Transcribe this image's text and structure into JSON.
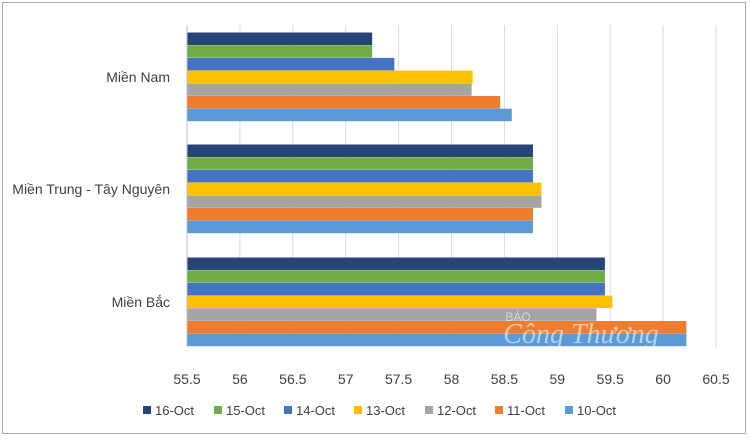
{
  "chart_data": {
    "type": "bar",
    "orientation": "horizontal",
    "categories": [
      "Miền Nam",
      "Miền Trung - Tây Nguyên",
      "Miền Bắc"
    ],
    "series": [
      {
        "name": "16-Oct",
        "color": "#264478",
        "values": [
          57.25,
          58.77,
          59.45
        ]
      },
      {
        "name": "15-Oct",
        "color": "#70ad47",
        "values": [
          57.25,
          58.77,
          59.45
        ]
      },
      {
        "name": "14-Oct",
        "color": "#4472c4",
        "values": [
          57.46,
          58.77,
          59.45
        ]
      },
      {
        "name": "13-Oct",
        "color": "#ffc000",
        "values": [
          58.2,
          58.85,
          59.52
        ]
      },
      {
        "name": "12-Oct",
        "color": "#a5a5a5",
        "values": [
          58.19,
          58.85,
          59.37
        ]
      },
      {
        "name": "11-Oct",
        "color": "#ed7d31",
        "values": [
          58.46,
          58.77,
          60.22
        ]
      },
      {
        "name": "10-Oct",
        "color": "#5b9bd5",
        "values": [
          58.57,
          58.77,
          60.22
        ]
      }
    ],
    "xlim": [
      55.5,
      60.5
    ],
    "ticks": [
      "55.5",
      "56",
      "56.5",
      "57",
      "57.5",
      "58",
      "58.5",
      "59",
      "59.5",
      "60",
      "60.5"
    ],
    "grid": true,
    "legend_position": "bottom"
  },
  "watermark": {
    "line1": "BÁO",
    "line2": "Công Thương"
  }
}
